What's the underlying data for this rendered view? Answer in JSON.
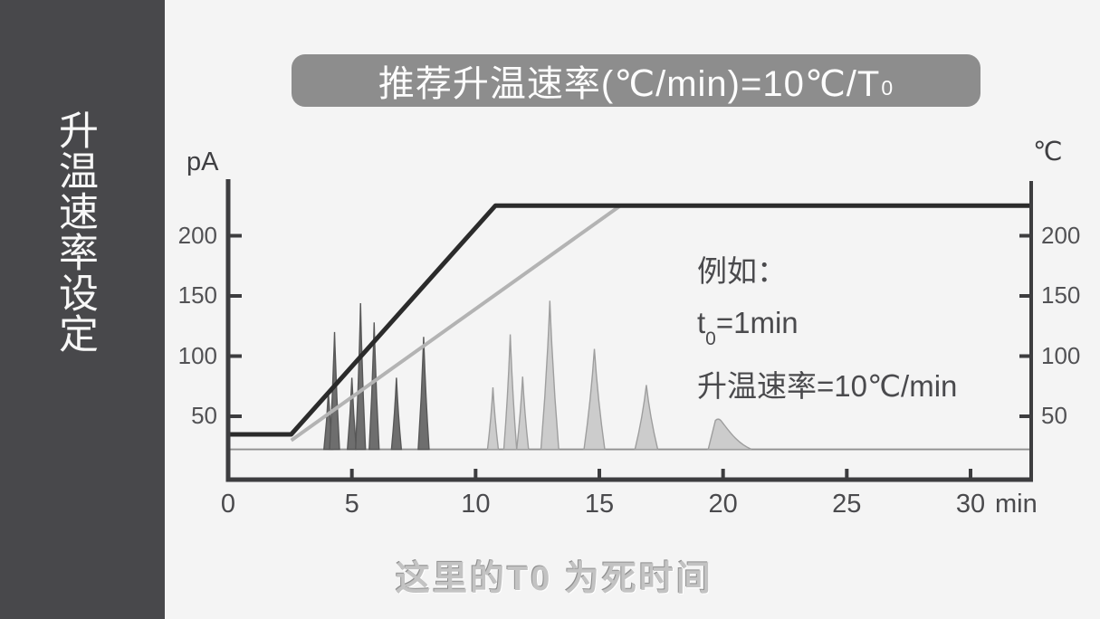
{
  "sidebar": {
    "title": "升温速率设定"
  },
  "banner": {
    "text_main": "推荐升温速率(℃/min)=10℃/T",
    "text_sub": "0"
  },
  "axis_units": {
    "left": "pA",
    "right": "℃",
    "x": "min"
  },
  "annotation": {
    "line1": "例如：",
    "line2_pre": "t",
    "line2_sub": "0",
    "line2_post": "=1min",
    "line3": "升温速率=10℃/min"
  },
  "caption": "这里的T0 为死时间",
  "colors": {
    "sidebar_bg": "#48484b",
    "banner_bg": "#8d8d8d",
    "axis": "#3d3d3f",
    "fast_line": "#2b2b2b",
    "slow_line": "#b3b3b3",
    "dark_peak_fill": "#6e6e6e",
    "dark_peak_stroke": "#575757",
    "light_peak_fill": "#cccccc",
    "light_peak_stroke": "#9e9e9e",
    "baseline": "#8f8f8f"
  },
  "chart_data": {
    "type": "line",
    "title": "推荐升温速率(℃/min)=10℃/T₀",
    "x": {
      "label": "min",
      "range": [
        0,
        32.5
      ],
      "ticks": [
        0,
        5,
        10,
        15,
        20,
        25,
        30
      ]
    },
    "y_left": {
      "label": "pA",
      "ticks": [
        50,
        100,
        150,
        200
      ]
    },
    "y_right": {
      "label": "℃",
      "ticks": [
        50,
        100,
        150,
        200
      ]
    },
    "grid": false,
    "baseline_pA": 22.5,
    "temperature_programs": [
      {
        "name": "slow-ramp-program",
        "role": "slow",
        "points_min_c": [
          [
            2.55,
            30
          ],
          [
            15.85,
            225
          ],
          [
            32.45,
            225
          ]
        ]
      },
      {
        "name": "recommended-fast-ramp-program",
        "role": "fast",
        "points_min_c": [
          [
            0,
            35
          ],
          [
            2.55,
            35
          ],
          [
            10.8,
            225
          ],
          [
            32.45,
            225
          ]
        ]
      }
    ],
    "peak_groups": [
      {
        "name": "early-eluting-peaks-fast-ramp",
        "role": "dark",
        "peaks": [
          {
            "t_min": 4.05,
            "pA": 70,
            "halfwidth_min": 0.18
          },
          {
            "t_min": 4.3,
            "pA": 120,
            "halfwidth_min": 0.2
          },
          {
            "t_min": 5.0,
            "pA": 82,
            "halfwidth_min": 0.18
          },
          {
            "t_min": 5.35,
            "pA": 144,
            "halfwidth_min": 0.2
          },
          {
            "t_min": 5.9,
            "pA": 128,
            "halfwidth_min": 0.2
          },
          {
            "t_min": 6.8,
            "pA": 82,
            "halfwidth_min": 0.2
          },
          {
            "t_min": 7.9,
            "pA": 116,
            "halfwidth_min": 0.22
          }
        ]
      },
      {
        "name": "late-eluting-peaks-slow-ramp",
        "role": "light",
        "peaks": [
          {
            "t_min": 10.7,
            "pA": 74,
            "halfwidth_min": 0.22
          },
          {
            "t_min": 11.4,
            "pA": 118,
            "halfwidth_min": 0.26
          },
          {
            "t_min": 11.9,
            "pA": 83,
            "halfwidth_min": 0.24
          },
          {
            "t_min": 13.0,
            "pA": 146,
            "halfwidth_min": 0.36
          },
          {
            "t_min": 14.8,
            "pA": 106,
            "halfwidth_min": 0.42
          },
          {
            "t_min": 16.9,
            "pA": 76,
            "halfwidth_min": 0.46
          },
          {
            "t_min": 19.8,
            "pA": 48,
            "halfwidth_min": 0.4,
            "tail_min": 1.35,
            "shape": "tailing"
          }
        ]
      }
    ]
  }
}
